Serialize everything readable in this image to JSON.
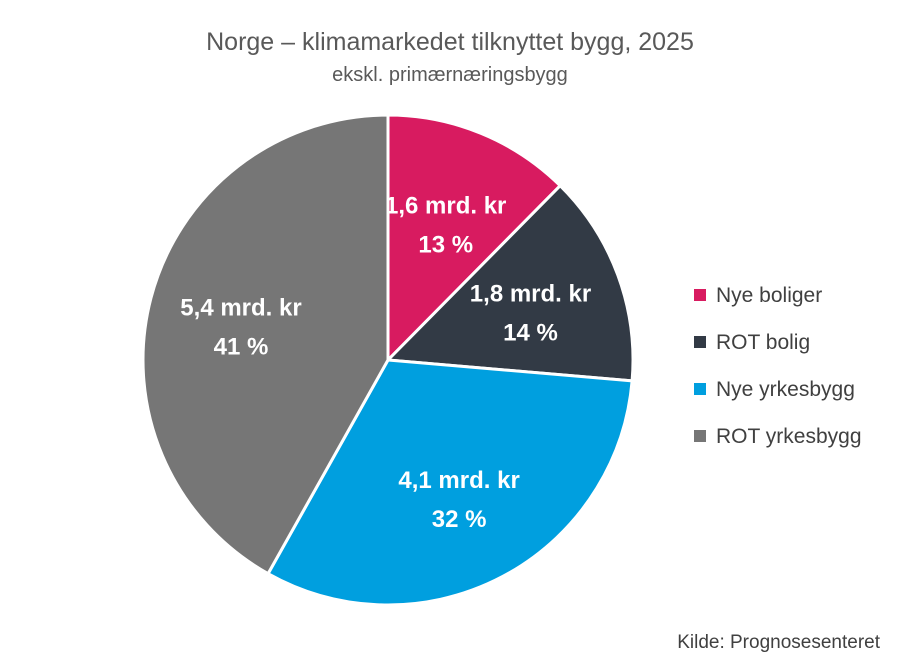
{
  "chart_data": {
    "type": "pie",
    "title": "Norge – klimamarkedet tilknyttet bygg, 2025",
    "subtitle": "ekskl. primærnæringsbygg",
    "source": "Kilde: Prognosesenteret",
    "legend_position": "right",
    "slices": [
      {
        "name": "Nye boliger",
        "value": 1.6,
        "value_label": "1,6 mrd. kr",
        "percent": 13,
        "percent_label": "13 %",
        "color": "#D81B60"
      },
      {
        "name": "ROT bolig",
        "value": 1.8,
        "value_label": "1,8 mrd. kr",
        "percent": 14,
        "percent_label": "14 %",
        "color": "#323A45"
      },
      {
        "name": "Nye yrkesbygg",
        "value": 4.1,
        "value_label": "4,1 mrd. kr",
        "percent": 32,
        "percent_label": "32 %",
        "color": "#009FDF"
      },
      {
        "name": "ROT yrkesbygg",
        "value": 5.4,
        "value_label": "5,4 mrd. kr",
        "percent": 41,
        "percent_label": "41 %",
        "color": "#767676"
      }
    ]
  }
}
